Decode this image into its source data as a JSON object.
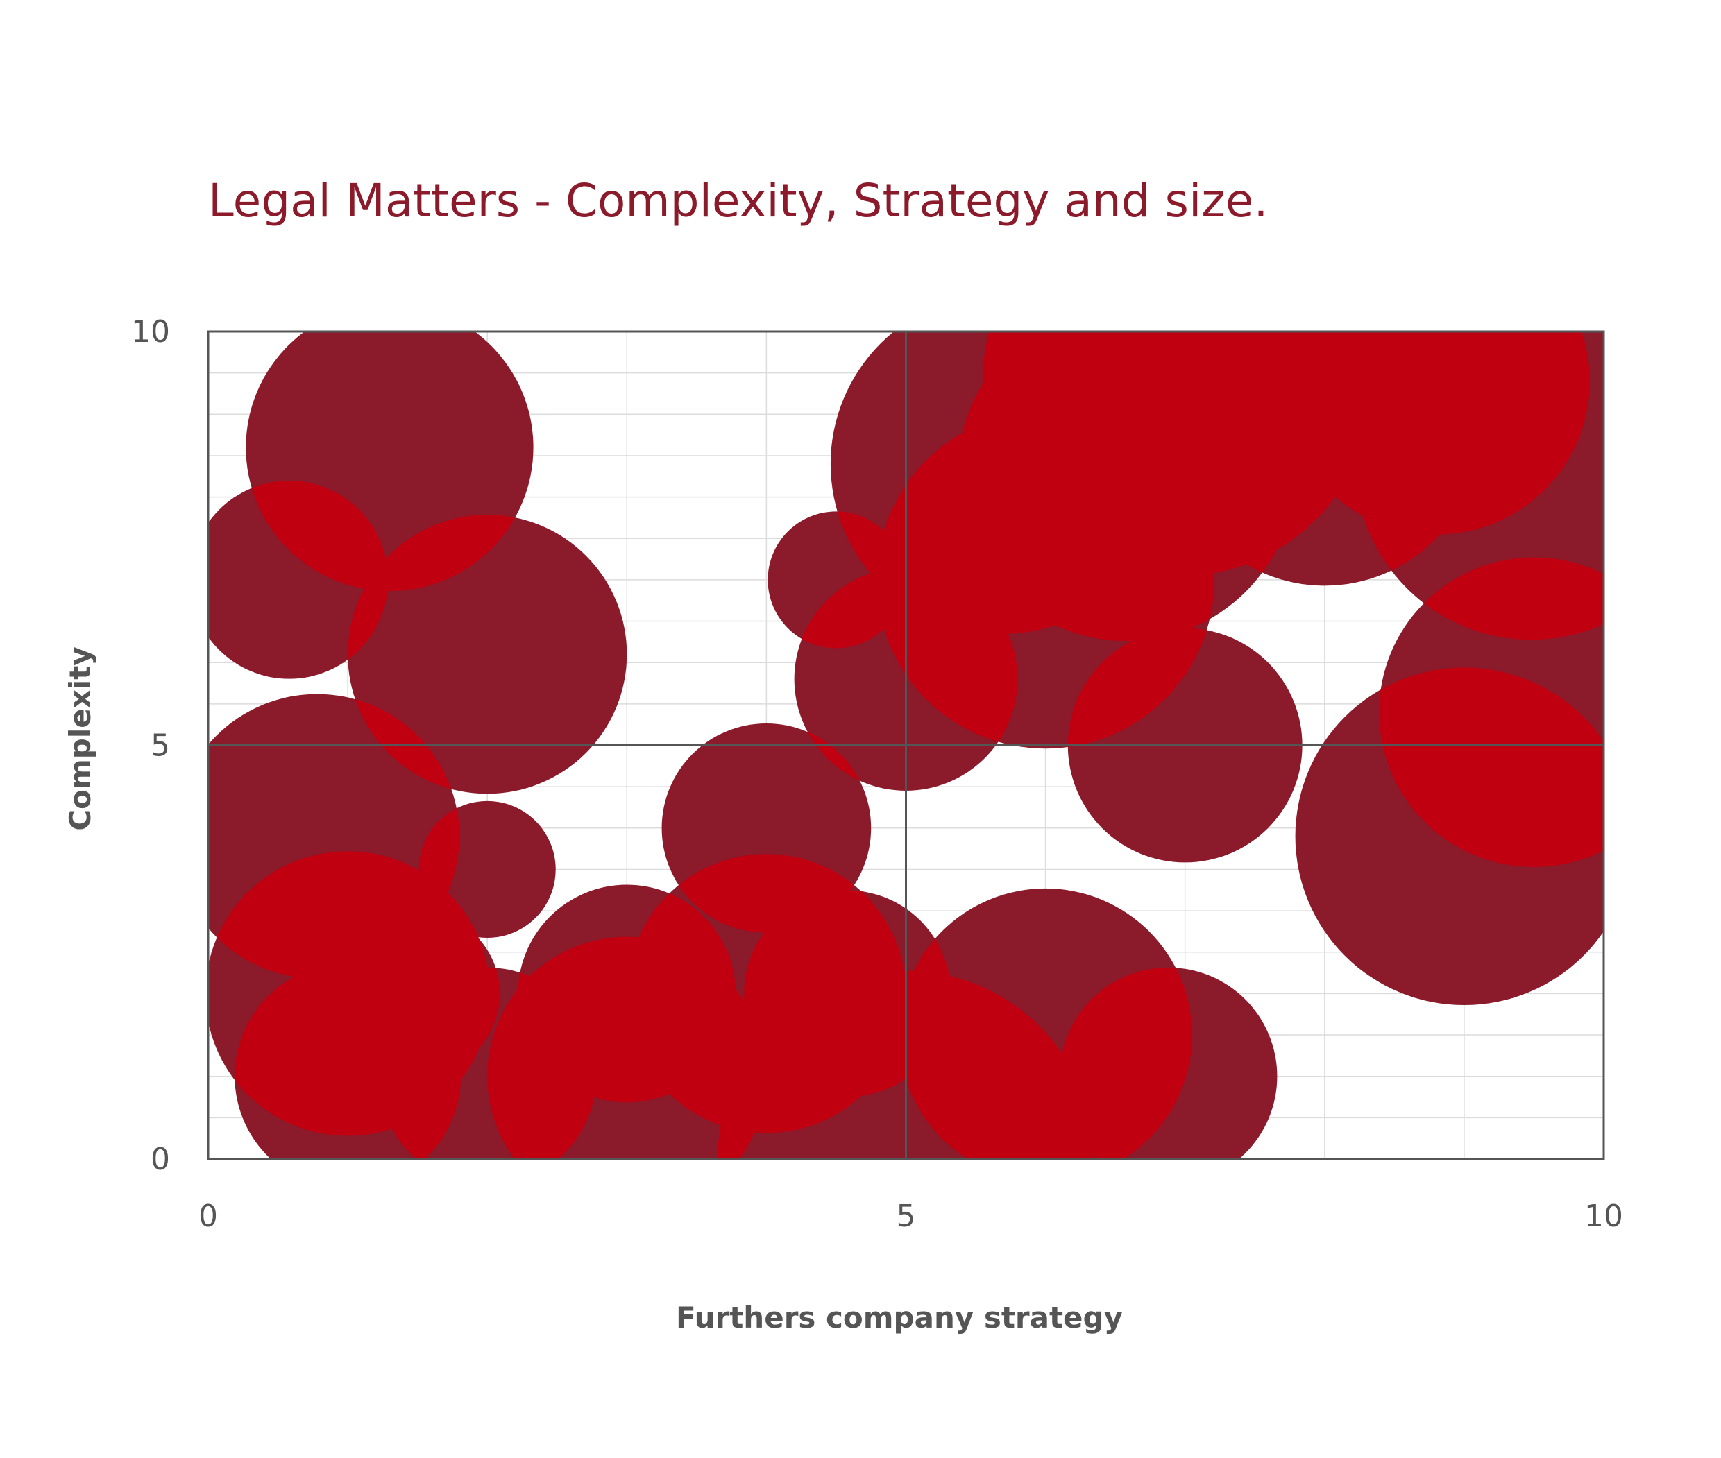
{
  "chart_data": {
    "type": "scatter",
    "subtype": "bubble",
    "title": "Legal Matters - Complexity, Strategy and size.",
    "xlabel": "Furthers company strategy",
    "ylabel": "Complexity",
    "xlim": [
      0,
      10
    ],
    "ylim": [
      0,
      10
    ],
    "x_ticks": [
      "0",
      "5",
      "10"
    ],
    "y_ticks": [
      "0",
      "5",
      "10"
    ],
    "grid": true,
    "grid_minor_step": 1,
    "quadrant_lines": {
      "x": 5,
      "y": 5
    },
    "legend": "none",
    "bubble_color": "#8b1a2b",
    "overlap_color": "#c00010",
    "points": [
      {
        "x": 1.3,
        "y": 8.6,
        "size": 1.03
      },
      {
        "x": 0.58,
        "y": 7.0,
        "size": 0.71
      },
      {
        "x": 2.0,
        "y": 6.1,
        "size": 1.0
      },
      {
        "x": 0.78,
        "y": 3.9,
        "size": 1.02
      },
      {
        "x": 2.0,
        "y": 3.5,
        "size": 0.49
      },
      {
        "x": 1.0,
        "y": 2.0,
        "size": 1.02
      },
      {
        "x": 1.5,
        "y": 2.0,
        "size": 0.59
      },
      {
        "x": 1.0,
        "y": 1.0,
        "size": 0.81
      },
      {
        "x": 2.0,
        "y": 1.0,
        "size": 0.78
      },
      {
        "x": 3.0,
        "y": 2.0,
        "size": 0.78
      },
      {
        "x": 3.0,
        "y": 1.0,
        "size": 1.0
      },
      {
        "x": 4.0,
        "y": 4.0,
        "size": 0.75
      },
      {
        "x": 4.0,
        "y": 2.0,
        "size": 1.0
      },
      {
        "x": 4.58,
        "y": 2.0,
        "size": 0.74
      },
      {
        "x": 4.5,
        "y": 7.0,
        "size": 0.49
      },
      {
        "x": 5.0,
        "y": 5.8,
        "size": 0.8
      },
      {
        "x": 5.0,
        "y": 0.0,
        "size": 1.35
      },
      {
        "x": 5.68,
        "y": 8.4,
        "size": 1.22
      },
      {
        "x": 6.0,
        "y": 7.0,
        "size": 1.21
      },
      {
        "x": 6.58,
        "y": 8.3,
        "size": 1.21
      },
      {
        "x": 6.95,
        "y": 9.4,
        "size": 1.4
      },
      {
        "x": 6.0,
        "y": 1.5,
        "size": 1.05
      },
      {
        "x": 7.0,
        "y": 5.0,
        "size": 0.84
      },
      {
        "x": 6.88,
        "y": 1.0,
        "size": 0.78
      },
      {
        "x": 8.0,
        "y": 8.8,
        "size": 1.11
      },
      {
        "x": 8.8,
        "y": 9.4,
        "size": 1.1
      },
      {
        "x": 9.48,
        "y": 8.4,
        "size": 1.26
      },
      {
        "x": 9.5,
        "y": 5.4,
        "size": 1.11
      },
      {
        "x": 9.0,
        "y": 3.9,
        "size": 1.21
      }
    ]
  }
}
